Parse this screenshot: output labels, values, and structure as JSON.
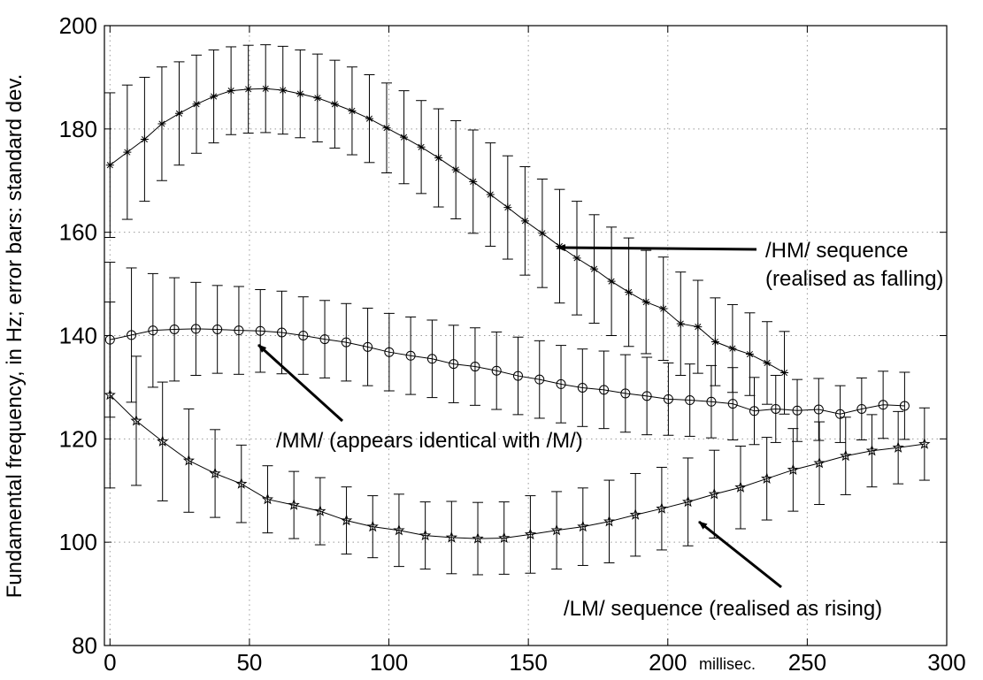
{
  "chart_data": {
    "type": "errorbar-line",
    "y_label": "Fundamental frequency, in Hz; error bars: standard dev.",
    "x_label": "millisec.",
    "xlim": [
      -2,
      300
    ],
    "xticks": [
      0,
      50,
      100,
      150,
      200,
      250,
      300
    ],
    "ylim": [
      80,
      200
    ],
    "yticks": [
      80,
      100,
      120,
      140,
      160,
      180,
      200
    ],
    "grid": true,
    "series": [
      {
        "color": "#000000",
        "marker": "asterisk",
        "x": [
          0,
          6.2,
          12.4,
          18.6,
          24.8,
          31,
          37.2,
          43.4,
          49.6,
          55.8,
          62,
          68.2,
          74.4,
          80.6,
          86.8,
          93,
          99.2,
          105.4,
          111.6,
          117.8,
          124,
          130.2,
          136.4,
          142.6,
          148.8,
          155,
          161.2,
          167.4,
          173.6,
          179.8,
          186,
          192.2,
          198.4,
          204.6,
          210.8,
          217,
          223.2,
          229.4,
          235.6,
          241.8
        ],
        "values": [
          173,
          175.5,
          178,
          181,
          183,
          184.8,
          186.3,
          187.4,
          187.7,
          187.8,
          187.5,
          186.8,
          186,
          184.8,
          183.5,
          182,
          180.2,
          178.4,
          176.5,
          174.4,
          172.1,
          169.8,
          167.3,
          164.8,
          162.2,
          159.8,
          157.3,
          155,
          152.9,
          150.5,
          148.4,
          146.5,
          145.2,
          142.3,
          141.7,
          138.8,
          137.5,
          136.4,
          134.7,
          132.8
        ],
        "errors": [
          14,
          13,
          12,
          11,
          10,
          9.5,
          9,
          8.5,
          8.5,
          8.5,
          8.5,
          8.5,
          8.5,
          8.5,
          8.5,
          8.5,
          8.7,
          9,
          9,
          9.5,
          9.5,
          10,
          10,
          10,
          10.5,
          10.5,
          11,
          11,
          10.5,
          10.5,
          10.5,
          10,
          10,
          10,
          9,
          8.5,
          8.5,
          8,
          8,
          8
        ]
      },
      {
        "color": "#000000",
        "marker": "circle",
        "x": [
          0,
          7.7,
          15.4,
          23.1,
          30.8,
          38.5,
          46.2,
          53.9,
          61.6,
          69.3,
          77,
          84.7,
          92.4,
          100.1,
          107.8,
          115.5,
          123.2,
          130.9,
          138.6,
          146.3,
          154,
          161.7,
          169.4,
          177.1,
          184.8,
          192.5,
          200.2,
          207.9,
          215.6,
          223.3,
          231,
          238.7,
          246.4,
          254.1,
          261.8,
          269.5,
          277.2,
          284.9
        ],
        "values": [
          139.2,
          140.1,
          141,
          141.2,
          141.3,
          141.2,
          141,
          140.9,
          140.6,
          140,
          139.3,
          138.7,
          137.8,
          136.8,
          136.1,
          135.5,
          134.5,
          134,
          133.2,
          132.2,
          131.5,
          130.6,
          129.9,
          129.5,
          128.8,
          128.3,
          127.7,
          127.5,
          127.2,
          126.8,
          125.4,
          125.8,
          125.5,
          125.7,
          124.8,
          125.8,
          126.6,
          126.4
        ],
        "errors": [
          15,
          13,
          11,
          10,
          9,
          8.5,
          8.5,
          8,
          8,
          7.5,
          7.5,
          7.5,
          7.5,
          7.5,
          7.5,
          7.5,
          7.5,
          7.5,
          7.5,
          7.5,
          7.5,
          7.5,
          7.5,
          7.5,
          7.5,
          7.5,
          7,
          7,
          7,
          7,
          6.5,
          6.5,
          6,
          6,
          5.5,
          6,
          6.5,
          6.5
        ]
      },
      {
        "color": "#000000",
        "marker": "star",
        "x": [
          0,
          9.42,
          18.84,
          28.26,
          37.68,
          47.1,
          56.52,
          65.94,
          75.36,
          84.78,
          94.2,
          103.62,
          113.04,
          122.46,
          131.88,
          141.3,
          150.72,
          160.14,
          169.56,
          178.98,
          188.4,
          197.82,
          207.24,
          216.66,
          226.08,
          235.5,
          244.92,
          254.34,
          263.76,
          273.18,
          282.6,
          292.02
        ],
        "values": [
          128.5,
          123.5,
          119.5,
          115.8,
          113.3,
          111.3,
          108.3,
          107.2,
          106,
          104.2,
          103,
          102.3,
          101.3,
          100.9,
          100.7,
          100.8,
          101.5,
          102.3,
          103,
          104,
          105.3,
          106.5,
          107.8,
          109.3,
          110.6,
          112.3,
          114,
          115.3,
          116.7,
          117.7,
          118.3,
          119
        ],
        "errors": [
          18,
          12.5,
          11.5,
          10,
          8.5,
          7.5,
          6.5,
          6.5,
          6.5,
          6.5,
          6,
          7,
          6.5,
          7,
          7,
          7,
          7.5,
          7.5,
          7.5,
          8,
          8,
          8,
          8.5,
          8.5,
          8,
          8,
          8,
          8,
          7.5,
          7,
          7,
          7
        ]
      }
    ],
    "annotations": [
      {
        "lines": [
          "/HM/ sequence",
          "(realised as falling)"
        ]
      },
      {
        "lines": [
          "/MM/ (appears identical with /M/)"
        ]
      },
      {
        "lines": [
          "/LM/ sequence (realised as rising)"
        ]
      }
    ]
  }
}
